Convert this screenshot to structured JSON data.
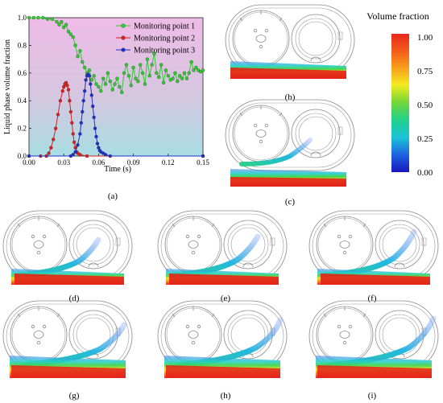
{
  "chart_data": {
    "type": "line",
    "xlabel": "Time (s)",
    "ylabel": "Liquid phase volume fraction",
    "xlim": [
      0.0,
      0.15
    ],
    "ylim": [
      0.0,
      1.0
    ],
    "xticks": [
      "0.00",
      "0.03",
      "0.06",
      "0.09",
      "0.12",
      "0.15"
    ],
    "yticks": [
      "0.0",
      "0.2",
      "0.4",
      "0.6",
      "0.8",
      "1.0"
    ],
    "legend_position": "top-right",
    "series": [
      {
        "name": "Monitoring point 1",
        "color": "#2ecc2e",
        "marker": "circle",
        "points": [
          [
            0.0,
            1.0
          ],
          [
            0.004,
            1.0
          ],
          [
            0.008,
            1.0
          ],
          [
            0.012,
            1.0
          ],
          [
            0.016,
            0.99
          ],
          [
            0.02,
            0.99
          ],
          [
            0.024,
            0.97
          ],
          [
            0.026,
            0.95
          ],
          [
            0.028,
            0.97
          ],
          [
            0.03,
            0.93
          ],
          [
            0.032,
            0.95
          ],
          [
            0.034,
            0.9
          ],
          [
            0.036,
            0.88
          ],
          [
            0.038,
            0.86
          ],
          [
            0.04,
            0.8
          ],
          [
            0.042,
            0.72
          ],
          [
            0.044,
            0.76
          ],
          [
            0.046,
            0.68
          ],
          [
            0.048,
            0.64
          ],
          [
            0.05,
            0.6
          ],
          [
            0.052,
            0.62
          ],
          [
            0.054,
            0.55
          ],
          [
            0.056,
            0.58
          ],
          [
            0.058,
            0.52
          ],
          [
            0.06,
            0.5
          ],
          [
            0.062,
            0.47
          ],
          [
            0.064,
            0.56
          ],
          [
            0.066,
            0.52
          ],
          [
            0.068,
            0.6
          ],
          [
            0.07,
            0.54
          ],
          [
            0.072,
            0.48
          ],
          [
            0.074,
            0.52
          ],
          [
            0.076,
            0.56
          ],
          [
            0.078,
            0.5
          ],
          [
            0.08,
            0.46
          ],
          [
            0.082,
            0.6
          ],
          [
            0.084,
            0.66
          ],
          [
            0.086,
            0.58
          ],
          [
            0.088,
            0.51
          ],
          [
            0.09,
            0.64
          ],
          [
            0.092,
            0.56
          ],
          [
            0.094,
            0.54
          ],
          [
            0.096,
            0.66
          ],
          [
            0.098,
            0.6
          ],
          [
            0.1,
            0.52
          ],
          [
            0.102,
            0.7
          ],
          [
            0.104,
            0.58
          ],
          [
            0.106,
            0.66
          ],
          [
            0.108,
            0.74
          ],
          [
            0.11,
            0.6
          ],
          [
            0.112,
            0.57
          ],
          [
            0.114,
            0.66
          ],
          [
            0.116,
            0.53
          ],
          [
            0.118,
            0.62
          ],
          [
            0.12,
            0.58
          ],
          [
            0.122,
            0.55
          ],
          [
            0.124,
            0.56
          ],
          [
            0.126,
            0.6
          ],
          [
            0.128,
            0.54
          ],
          [
            0.13,
            0.58
          ],
          [
            0.132,
            0.56
          ],
          [
            0.134,
            0.6
          ],
          [
            0.136,
            0.56
          ],
          [
            0.138,
            0.6
          ],
          [
            0.14,
            0.68
          ],
          [
            0.142,
            0.62
          ],
          [
            0.144,
            0.64
          ],
          [
            0.146,
            0.62
          ],
          [
            0.148,
            0.61
          ],
          [
            0.15,
            0.62
          ]
        ]
      },
      {
        "name": "Monitoring point 2",
        "color": "#dd1f1f",
        "marker": "circle",
        "points": [
          [
            0.0,
            0.0
          ],
          [
            0.01,
            0.0
          ],
          [
            0.015,
            0.0
          ],
          [
            0.017,
            0.02
          ],
          [
            0.019,
            0.06
          ],
          [
            0.021,
            0.12
          ],
          [
            0.023,
            0.2
          ],
          [
            0.025,
            0.3
          ],
          [
            0.027,
            0.4
          ],
          [
            0.029,
            0.47
          ],
          [
            0.03,
            0.5
          ],
          [
            0.031,
            0.52
          ],
          [
            0.032,
            0.53
          ],
          [
            0.033,
            0.51
          ],
          [
            0.034,
            0.48
          ],
          [
            0.035,
            0.4
          ],
          [
            0.036,
            0.32
          ],
          [
            0.037,
            0.24
          ],
          [
            0.038,
            0.16
          ],
          [
            0.039,
            0.1
          ],
          [
            0.04,
            0.06
          ],
          [
            0.041,
            0.03
          ],
          [
            0.042,
            0.02
          ],
          [
            0.044,
            0.01
          ],
          [
            0.05,
            0.0
          ],
          [
            0.15,
            0.0
          ]
        ]
      },
      {
        "name": "Monitoring point 3",
        "color": "#1f2fcc",
        "marker": "circle",
        "points": [
          [
            0.0,
            0.0
          ],
          [
            0.036,
            0.0
          ],
          [
            0.038,
            0.01
          ],
          [
            0.04,
            0.03
          ],
          [
            0.042,
            0.08
          ],
          [
            0.044,
            0.16
          ],
          [
            0.045,
            0.24
          ],
          [
            0.046,
            0.32
          ],
          [
            0.047,
            0.4
          ],
          [
            0.048,
            0.47
          ],
          [
            0.049,
            0.55
          ],
          [
            0.05,
            0.58
          ],
          [
            0.051,
            0.59
          ],
          [
            0.052,
            0.58
          ],
          [
            0.053,
            0.52
          ],
          [
            0.054,
            0.44
          ],
          [
            0.055,
            0.36
          ],
          [
            0.056,
            0.28
          ],
          [
            0.057,
            0.2
          ],
          [
            0.058,
            0.14
          ],
          [
            0.059,
            0.09
          ],
          [
            0.06,
            0.06
          ],
          [
            0.061,
            0.04
          ],
          [
            0.062,
            0.03
          ],
          [
            0.064,
            0.02
          ],
          [
            0.066,
            0.01
          ],
          [
            0.07,
            0.0
          ],
          [
            0.15,
            0.0
          ]
        ]
      }
    ]
  },
  "colorbar": {
    "title": "Volume fraction",
    "ticks": [
      "1.00",
      "0.75",
      "0.50",
      "0.25",
      "0.00"
    ],
    "colors": [
      "#e8281c",
      "#f7a11c",
      "#f3ec1e",
      "#8fdc2a",
      "#2fd24a",
      "#1fcfb0",
      "#1aa3e0",
      "#1f3fd6",
      "#1a17c0"
    ]
  },
  "panel_labels": {
    "a": "(a)",
    "b": "(b)",
    "c": "(c)",
    "d": "(d)",
    "e": "(e)",
    "f": "(f)",
    "g": "(g)",
    "h": "(h)",
    "i": "(i)"
  }
}
